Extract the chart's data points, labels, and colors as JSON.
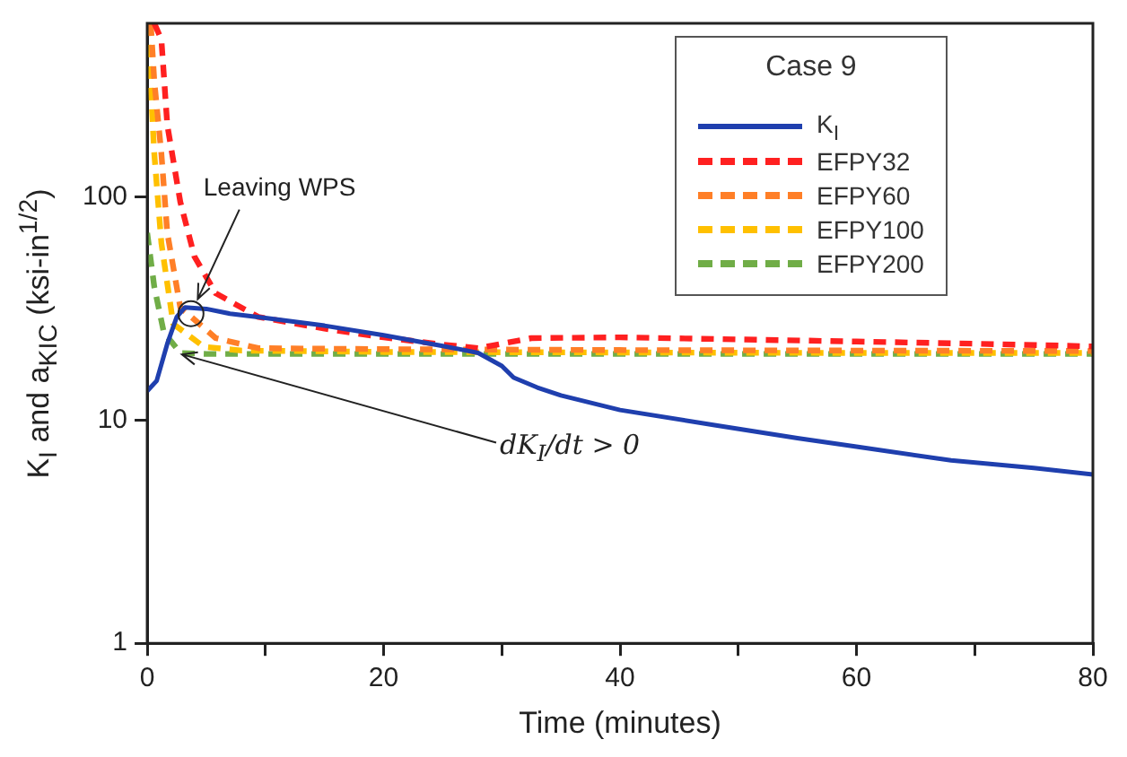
{
  "chart_data": {
    "type": "line",
    "xlabel": "Time (minutes)",
    "ylabel": "K$_{I}$ and a$_{KIC}$ (ksi-in$^{1/2}$)",
    "legend_title": "Case 9",
    "annotations": [
      {
        "text": "Leaving WPS",
        "x": 3.7,
        "y": 30
      },
      {
        "text": "dK$_{I}$/dt > 0",
        "x": 2.5,
        "y": 20
      }
    ],
    "xlim": [
      0,
      80
    ],
    "xticks": [
      0,
      {
        "value": 10,
        "label": null
      },
      20,
      {
        "value": 30,
        "label": null
      },
      40,
      {
        "value": 50,
        "label": null
      },
      60,
      {
        "value": 70,
        "label": null
      },
      80
    ],
    "ylim": [
      1,
      600
    ],
    "yticks": [
      1,
      10,
      100
    ],
    "log": "y",
    "grid": false,
    "legend": "top right",
    "marker": "none",
    "series": [
      {
        "name": "K$_{I}$",
        "color": "#1f3fae",
        "line_style": "solid",
        "x": [
          0,
          0.8,
          1.7,
          2.5,
          3.2,
          5,
          7,
          10,
          15,
          20,
          25,
          28,
          30,
          31,
          33,
          35,
          40,
          48,
          55,
          60,
          68,
          75,
          80
        ],
        "values": [
          13.5,
          15,
          22,
          29,
          32,
          31.5,
          30,
          28.7,
          26.5,
          24,
          21.5,
          20,
          17.5,
          15.5,
          14,
          12.9,
          11.1,
          9.5,
          8.3,
          7.6,
          6.6,
          6.1,
          5.7
        ]
      },
      {
        "name": "EFPY32",
        "color": "#ff2020",
        "line_style": "dashed",
        "x": [
          0.6,
          1.2,
          1.7,
          2.8,
          4,
          5.8,
          9.4,
          15,
          20,
          25,
          28,
          32.5,
          40,
          50,
          60,
          70,
          80
        ],
        "values": [
          600,
          507,
          210,
          95,
          54,
          37,
          29,
          25.7,
          23.5,
          21.8,
          21,
          23.3,
          23.5,
          23,
          22.5,
          22,
          21.4
        ]
      },
      {
        "name": "EFPY60",
        "color": "#ff7f27",
        "line_style": "dashed",
        "x": [
          0.3,
          0.6,
          1.2,
          1.7,
          2.8,
          5.8,
          9.4,
          20,
          40,
          60,
          80
        ],
        "values": [
          600,
          330,
          156,
          69,
          32,
          23.3,
          21,
          20.8,
          20.6,
          20.5,
          20.4
        ]
      },
      {
        "name": "EFPY100",
        "color": "#ffc000",
        "line_style": "dashed",
        "x": [
          0,
          0.15,
          0.6,
          1.2,
          2.2,
          4.8,
          8,
          20,
          40,
          60,
          80
        ],
        "values": [
          600,
          445,
          156,
          62,
          27,
          21.3,
          20.5,
          20.2,
          20.1,
          20,
          20
        ]
      },
      {
        "name": "EFPY200",
        "color": "#70ad47",
        "line_style": "dashed",
        "x": [
          0,
          0.6,
          1.4,
          2.8,
          5,
          20,
          40,
          60,
          80
        ],
        "values": [
          69,
          39.5,
          24.8,
          20,
          19.8,
          19.8,
          19.8,
          19.8,
          19.8
        ]
      }
    ]
  }
}
